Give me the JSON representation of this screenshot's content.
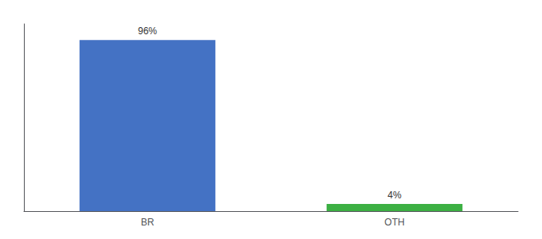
{
  "chart_data": {
    "type": "bar",
    "categories": [
      "BR",
      "OTH"
    ],
    "values": [
      96,
      4
    ],
    "value_labels": [
      "96%",
      "4%"
    ],
    "colors": [
      "#4472c4",
      "#3cb043"
    ],
    "data_labels": true,
    "ylim": [
      0,
      105
    ],
    "yticks": [],
    "tick_labels": "x",
    "grid": false
  }
}
